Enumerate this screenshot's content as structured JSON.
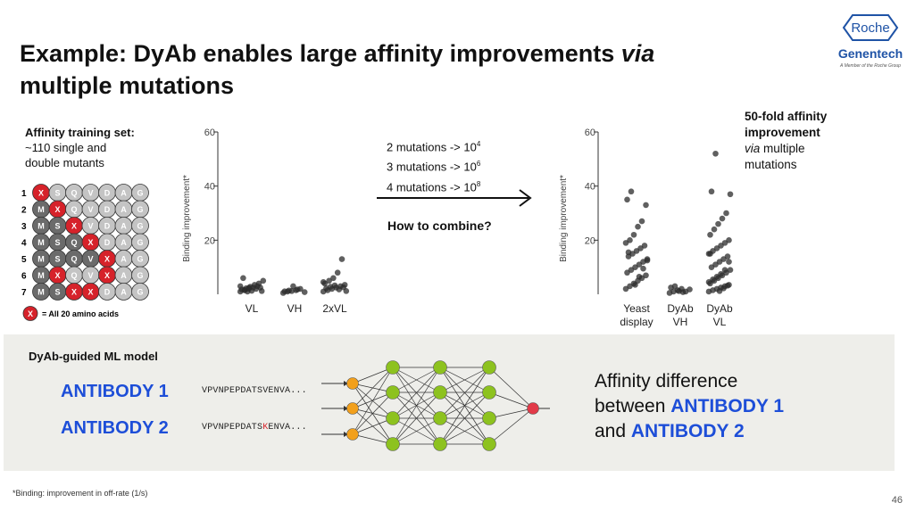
{
  "slide": {
    "title_part1": "Example: DyAb enables large affinity improvements ",
    "title_italic": "via",
    "title_part2": "multiple mutations",
    "page_number": "46",
    "footnote": "*Binding: improvement in off-rate (1/s)"
  },
  "logo": {
    "roche": "Roche",
    "genentech": "Genentech",
    "tagline": "A Member of the Roche Group"
  },
  "training_set": {
    "heading": "Affinity training set:",
    "line1": "~110 single and",
    "line2": "double mutants",
    "residues": [
      "M",
      "S",
      "Q",
      "V",
      "D",
      "A",
      "G"
    ],
    "rows": [
      {
        "label": "1",
        "mut": [
          0
        ]
      },
      {
        "label": "2",
        "mut": [
          1
        ]
      },
      {
        "label": "3",
        "mut": [
          2
        ]
      },
      {
        "label": "4",
        "mut": [
          3
        ]
      },
      {
        "label": "5",
        "mut": [
          4
        ]
      },
      {
        "label": "6",
        "mut": [
          1,
          4
        ]
      },
      {
        "label": "7",
        "mut": [
          2,
          3
        ]
      }
    ],
    "legend_symbol": "X",
    "legend_text": "= All 20 amino acids"
  },
  "combos": {
    "line1": "2 mutations -> 10",
    "exp1": "4",
    "line2": "3 mutations -> 10",
    "exp2": "6",
    "line3": "4 mutations -> 10",
    "exp3": "8",
    "question": "How to combine?"
  },
  "callout": {
    "bold1": "50-fold affinity",
    "bold2": "improvement",
    "italic": "via",
    "line3_rest": " multiple",
    "line4": "mutations"
  },
  "chart_data": [
    {
      "type": "scatter",
      "ylabel": "Binding improvement*",
      "ylim": [
        0,
        60
      ],
      "yticks": [
        "20",
        "40",
        "60"
      ],
      "categories": [
        "VL",
        "VH",
        "2xVL"
      ],
      "values": [
        [
          1,
          1.5,
          2,
          2.5,
          3,
          1.2,
          1.8,
          2.2,
          2.8,
          3.5,
          4,
          5,
          6,
          1,
          1.3,
          2,
          2.5,
          3,
          1.6,
          2.4
        ],
        [
          0.5,
          1,
          1.2,
          1.5,
          2,
          0.8,
          1.1,
          1.4,
          3,
          1.8
        ],
        [
          1,
          1.5,
          2,
          2.5,
          3,
          3.5,
          4,
          5,
          6,
          8,
          13,
          1.2,
          2.2,
          2.8,
          3.3,
          1.8,
          2.6,
          4.5
        ]
      ]
    },
    {
      "type": "scatter",
      "ylabel": "Binding improvement*",
      "ylim": [
        0,
        60
      ],
      "yticks": [
        "20",
        "40",
        "60"
      ],
      "categories": [
        "Yeast display",
        "DyAb VH",
        "DyAb VL"
      ],
      "values": [
        [
          2,
          3,
          4,
          5,
          6,
          7,
          8,
          9,
          10,
          11,
          12,
          13,
          14,
          15,
          16,
          17,
          18,
          19,
          20,
          22,
          25,
          27,
          33,
          35,
          38,
          3.5,
          6.5,
          9.5,
          12.5,
          15.5
        ],
        [
          0.5,
          1,
          1.5,
          2,
          1,
          1.8,
          2.5,
          3,
          1.2,
          0.8
        ],
        [
          1,
          1.5,
          2,
          2.5,
          3,
          3.5,
          4,
          5,
          6,
          7,
          8,
          9,
          10,
          11,
          12,
          13,
          14,
          15,
          16,
          17,
          18,
          19,
          20,
          22,
          24,
          26,
          28,
          30,
          37,
          38,
          52,
          1.2,
          2.2,
          3.2,
          4.5,
          5.5,
          6.5,
          7.5,
          9,
          12,
          15
        ]
      ]
    }
  ],
  "ml_panel": {
    "heading": "DyAb-guided ML model",
    "antibody1": "ANTIBODY 1",
    "antibody2": "ANTIBODY 2",
    "seq1": "VPVNPEPDATSVENVA...",
    "seq2_pre": "VPVNPEPDATS",
    "seq2_mut": "K",
    "seq2_post": "ENVA...",
    "out_line1": "Affinity difference",
    "out_line2_pre": "between ",
    "out_line2_ab": "ANTIBODY 1",
    "out_line3_pre": "and ",
    "out_line3_ab": "ANTIBODY 2",
    "colors": {
      "input": "#f2a01c",
      "hidden": "#8dc21f",
      "output": "#e23a48",
      "antibody": "#1d4ed8",
      "mutation": "#d6222a"
    }
  }
}
